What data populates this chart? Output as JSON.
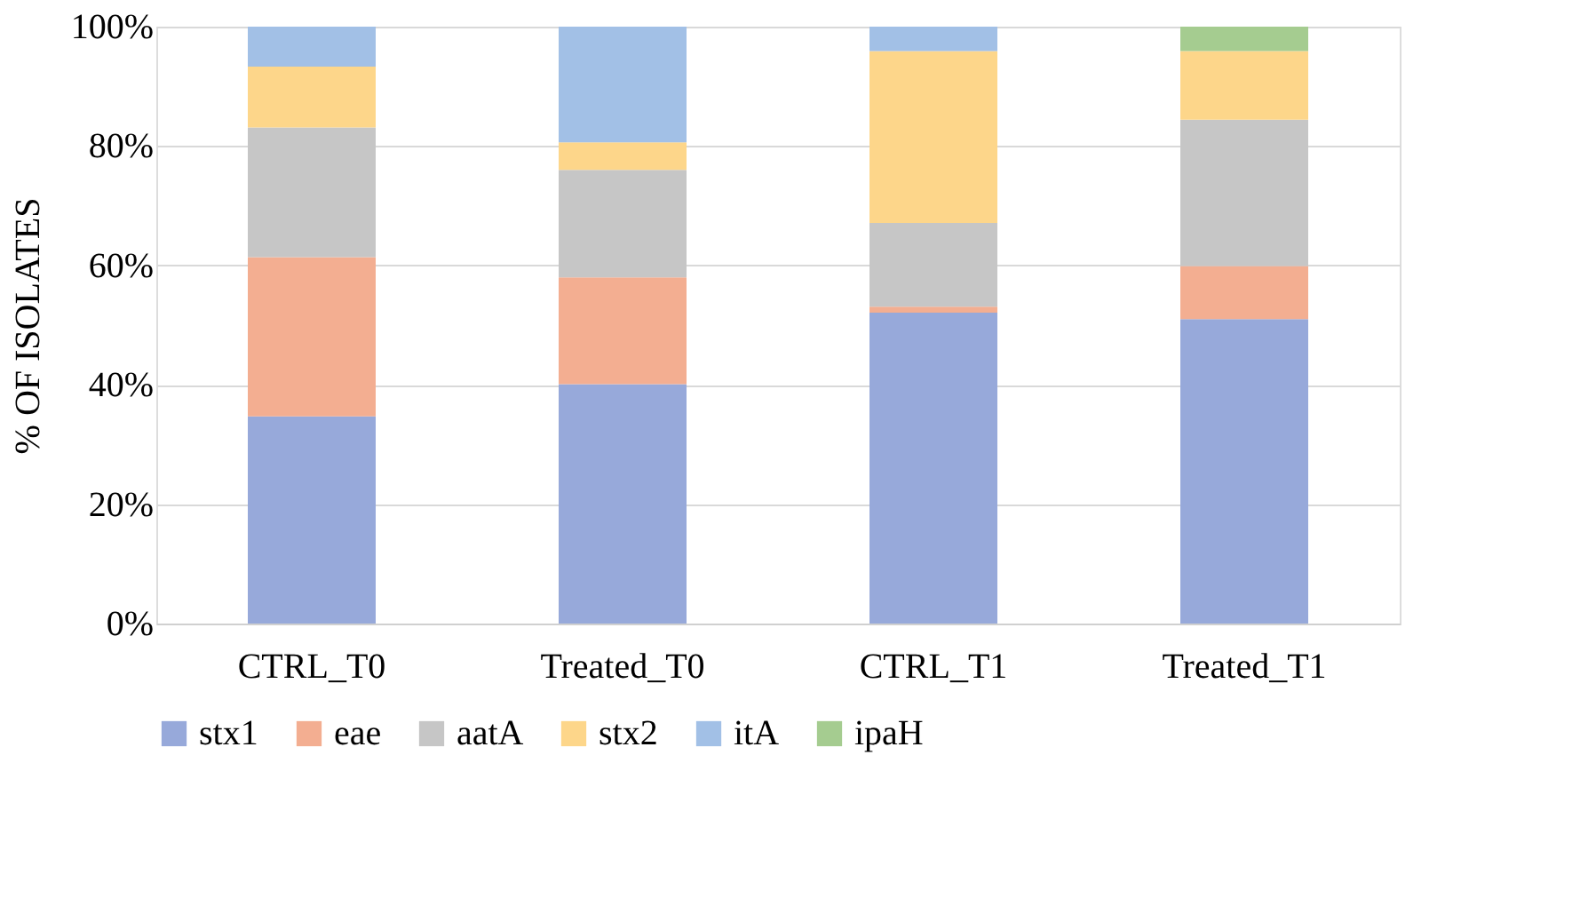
{
  "chart_data": {
    "type": "bar",
    "stacked": true,
    "ylabel": "% OF ISOLATES",
    "categories": [
      "CTRL_T0",
      "Treated_T0",
      "CTRL_T1",
      "Treated_T1"
    ],
    "series": [
      {
        "name": "stx1",
        "color": "#97a9da",
        "values": [
          34.7,
          40.1,
          52.1,
          51.0
        ]
      },
      {
        "name": "eae",
        "color": "#f3ae91",
        "values": [
          26.7,
          17.9,
          1.0,
          8.9
        ]
      },
      {
        "name": "aatA",
        "color": "#c6c6c6",
        "values": [
          21.7,
          18.0,
          14.0,
          24.5
        ]
      },
      {
        "name": "stx2",
        "color": "#fdd68a",
        "values": [
          10.2,
          4.6,
          28.8,
          11.5
        ]
      },
      {
        "name": "itA",
        "color": "#a2c0e6",
        "values": [
          6.7,
          19.4,
          4.1,
          0
        ]
      },
      {
        "name": "ipaH",
        "color": "#a5cc90",
        "values": [
          0,
          0,
          0,
          4.1
        ]
      }
    ],
    "ylim": [
      0,
      100
    ],
    "yticks": [
      {
        "value": 0,
        "label": "0%"
      },
      {
        "value": 20,
        "label": "20%"
      },
      {
        "value": 40,
        "label": "40%"
      },
      {
        "value": 60,
        "label": "60%"
      },
      {
        "value": 80,
        "label": "80%"
      },
      {
        "value": 100,
        "label": "100%"
      }
    ],
    "grid": "y",
    "legend": "bottom"
  }
}
